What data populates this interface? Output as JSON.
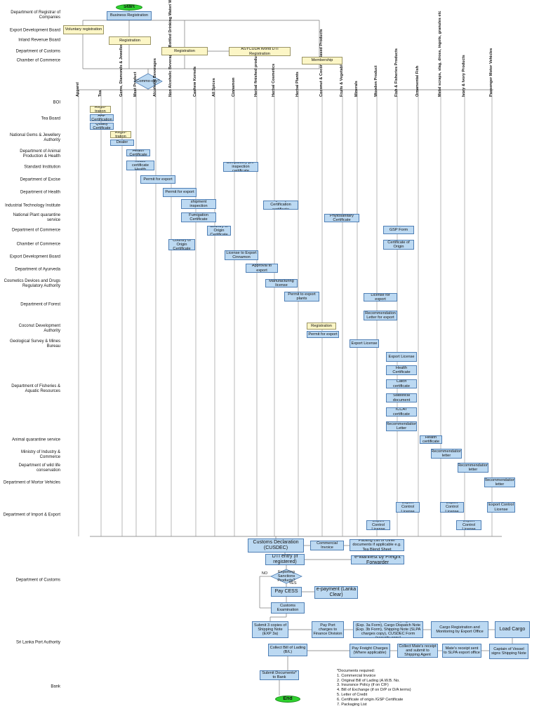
{
  "agencies": [
    "Department of Registrar of Companies",
    "Export Development Board",
    "Inland Revenue Board",
    "Department of Customs",
    "Chamber of Commerce",
    "BOI",
    "Tea Board",
    "National Gems & Jewellery Authority",
    "Department of Animal Production & Health",
    "Standard Institution",
    "Department of Excise",
    "Department of Health",
    "Industrial Technology Institute",
    "National Plant quarantine service",
    "Department of Commerce",
    "Chamber of Commerce",
    "Export Development Board",
    "Department of Ayurveda",
    "Cosmetics Devices and Drugs Regulatory Authority",
    "Department of Forest",
    "Coconut Development Authority",
    "Geological Survey & Mines Bureau",
    "Department of Fisheries & Aquatic Resources",
    "Animal quarantine service",
    "Ministry of Industry & Commerce",
    "Department of wild life conservation",
    "Department of Mortor Vehicles",
    "Department of Import & Export",
    "Department of Customs",
    "Sri Lanka Port Authority",
    "Bank"
  ],
  "commodities": [
    "Apparel",
    "Tea",
    "Gems, Diamonds & Jewellery",
    "Meat Product",
    "Alcoholic Beverages",
    "Non Alcoholic Beverages (Bottled Drinking Water/ Mineral Water)",
    "Cashew Kernels",
    "All Spices",
    "Cinnamon",
    "Herbal finished products",
    "Herbal Cosmetics",
    "Herbal Plants",
    "Coconut & Coconut Based Products",
    "Fruits & Vegetables",
    "Minerals",
    "Wooden Product",
    "Fish & Fisheries Products",
    "Ornamental Fish",
    "Metal scraps, slag, dross, ingots, granules etc",
    "Ivory & Ivory Products",
    "Passenger Motor Vehicles"
  ],
  "nodes": [
    "Start",
    "Business Registration",
    "Voluntary registration",
    "Registration",
    "Registration",
    "ASYCUDA World DTI Registration",
    "Membership",
    "Commo-dity?",
    "Regis-tration",
    "AAP Certification",
    "Quality Certificate",
    "Regis-tration",
    "Gem Dealer License",
    "Health Certificate",
    "Processing house certificate Health certificate",
    "Permit for export",
    "Permit for export",
    "Compulsory pre-inspection certificate",
    "Compulsory pre-shipment inspection certificate",
    "Quality Certification certificate",
    "Phytosanitary Certificate",
    "Fumigation Certificate",
    "Country of Origin Certificate",
    "GSP Form",
    "Certificate of Origin",
    "Country of Origin Certificate",
    "License to Export Cinnamon",
    "Approval to export",
    "Manufacturing license",
    "Permit to export plants",
    "License for export",
    "Recommendation Letter for export",
    "Registration",
    "Permit for export",
    "Export License",
    "Export License",
    "Health Certificate",
    "Catch certificate",
    "Statistical document",
    "ICCAT certificate",
    "Recommendation Letter",
    "Health certificate",
    "Recommendation letter",
    "Recommendation letter",
    "Recommendation letter",
    "Export Control License",
    "Export Control License",
    "Export Control License",
    "Export Control License",
    "Export Control License",
    "Customs Declaration (CUSDEC)",
    "Commercial Invoice",
    "Packing List or Other documents if applicable e.g. Tea Blend Sheet",
    "DTI entry (if registered)",
    "e-Manifest by Freight Forwarder",
    "Exporting Sanctions Products?",
    "NO",
    "YES",
    "Pay CESS",
    "e-payment (Lanka Clear)",
    "Customs Examination",
    "Submit 3 copies of Shipping Note (EXP 3a)",
    "Pay Port charges to Finance Division",
    "Submit 6 copies of Shipping Note (Exp. 3a Form), Cargo Dispatch Note (Exp. 3b Form), Shipping Note (SLPA charges copy), CUSDEC Form (security copy)",
    "Cargo Registration and Monitoring by Export Office",
    "Load Cargo",
    "Collect Bill of Lading (B/L)",
    "Pay Freight Charges (Where applicable)",
    "Collect Mate's receipt and submit to Shipping Agent",
    "Mate's receipt sent to SLPA export office",
    "Captain of Vessel signs Shipping Note",
    "Submit Documents* to Bank",
    "End"
  ],
  "notes": {
    "title": "*Documents required:",
    "items": [
      "1. Commercial Invoice",
      "2. Original Bill of Lading (A.W.B. No.",
      "3. Insurance Policy (if on CIF)",
      "4. Bill of Exchange (if on D/P or D/A terms)",
      "5. Letter of Credit",
      "6. Certificate of origin /GSP Certificate",
      "7. Packaging List"
    ]
  }
}
